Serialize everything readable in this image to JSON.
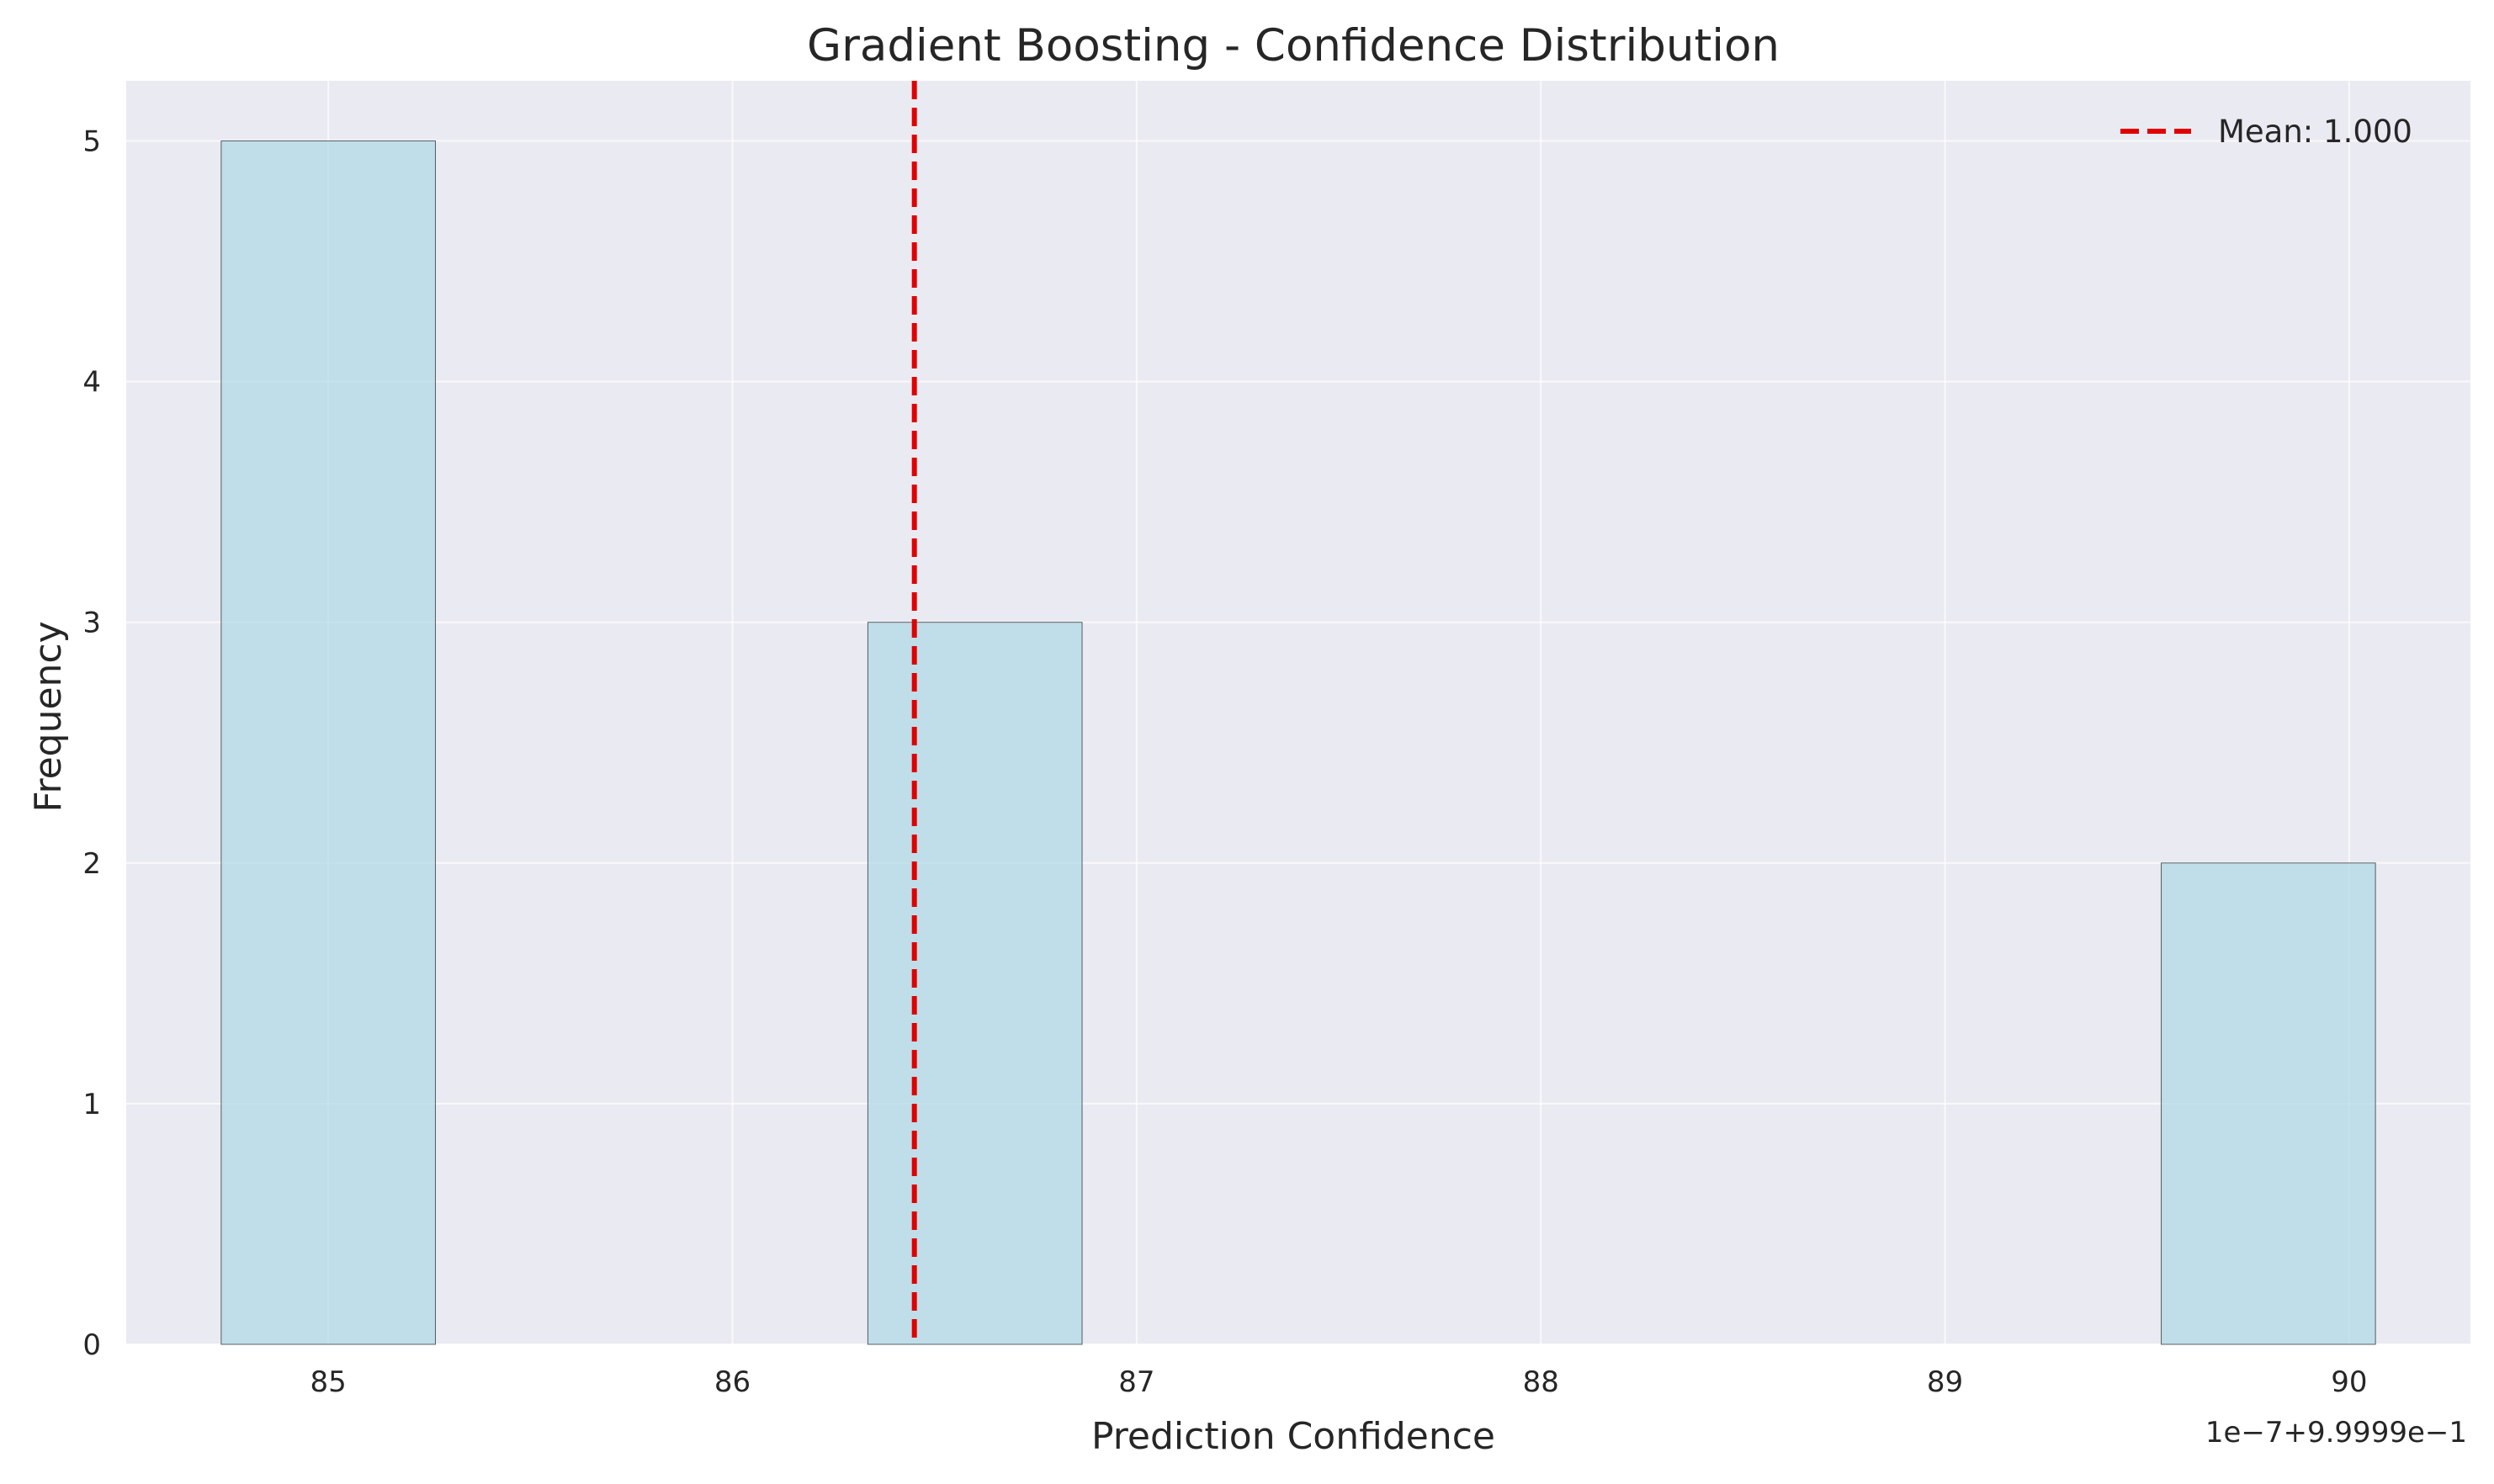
{
  "chart_data": {
    "type": "bar",
    "title": "Gradient Boosting - Confidence Distribution",
    "xlabel": "Prediction Confidence",
    "ylabel": "Frequency",
    "x_offset_text": "1e−7+9.9999e−1",
    "xlim": [
      84.5,
      90.3
    ],
    "ylim": [
      0,
      5.25
    ],
    "xticks": [
      85,
      86,
      87,
      88,
      89,
      90
    ],
    "yticks": [
      0,
      1,
      2,
      3,
      4,
      5
    ],
    "bin_width": 0.53,
    "bars": [
      {
        "center": 85.0,
        "value": 5
      },
      {
        "center": 86.6,
        "value": 3
      },
      {
        "center": 89.8,
        "value": 2
      }
    ],
    "mean_line": {
      "x": 86.45,
      "label": "Mean: 1.000",
      "color": "#e00000"
    },
    "bar_color": "#add8e6",
    "background": "#eaeaf2",
    "grid": true,
    "legend_position": "top-right"
  }
}
